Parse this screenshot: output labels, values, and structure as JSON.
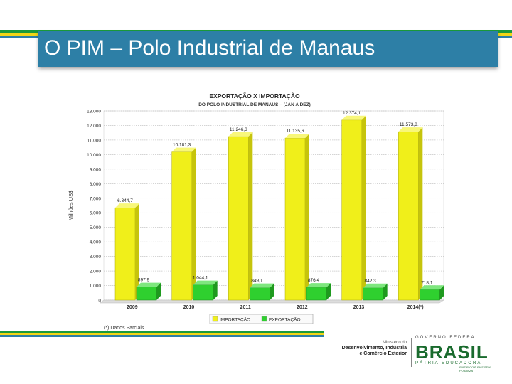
{
  "slide": {
    "title": "O PIM – Polo Industrial de Manaus",
    "footnote": "(*) Dados Parciais"
  },
  "colors": {
    "title_bar": "#2d7fa6",
    "stripe_green": "#1a9a3a",
    "stripe_yellow": "#f2d516",
    "stripe_blue": "#2d7fa6",
    "importacao": "#f0ef1a",
    "exportacao": "#2fd02f"
  },
  "logos": {
    "ministry_line1": "Ministério do",
    "ministry_line2": "Desenvolvimento, Indústria",
    "ministry_line3": "e Comércio Exterior",
    "gov_label": "GOVERNO FEDERAL",
    "brasil_word": "BRASIL",
    "brasil_sub": "PÁTRIA EDUCADORA",
    "brasil_slogan": "PAÍS RICO É PAÍS SEM POBREZA"
  },
  "chart_data": {
    "type": "bar",
    "title": "EXPORTAÇÃO X IMPORTAÇÃO",
    "subtitle": "DO POLO INDUSTRIAL DE MANAUS – (JAN A DEZ)",
    "xlabel": "",
    "ylabel": "Milhões US$",
    "ylim": [
      0,
      13000
    ],
    "yticks": [
      "0",
      "1.000",
      "2.000",
      "3.000",
      "4.000",
      "5.000",
      "6.000",
      "7.000",
      "8.000",
      "9.000",
      "10.000",
      "11.000",
      "12.000",
      "13.000"
    ],
    "categories": [
      "2009",
      "2010",
      "2011",
      "2012",
      "2013",
      "2014(*)"
    ],
    "grid": true,
    "legend": "bottom",
    "series": [
      {
        "name": "IMPORTAÇÃO",
        "values": [
          6344.7,
          10181.3,
          11246.3,
          11135.6,
          12374.1,
          11573.8
        ],
        "labels": [
          "6.344,7",
          "10.181,3",
          "11.246,3",
          "11.135,6",
          "12.374,1",
          "11.573,8"
        ]
      },
      {
        "name": "EXPORTAÇÃO",
        "values": [
          897.9,
          1044.1,
          849.1,
          876.4,
          842.3,
          718.1
        ],
        "labels": [
          "897,9",
          "1.044,1",
          "849,1",
          "876,4",
          "842,3",
          "718,1"
        ]
      }
    ]
  }
}
